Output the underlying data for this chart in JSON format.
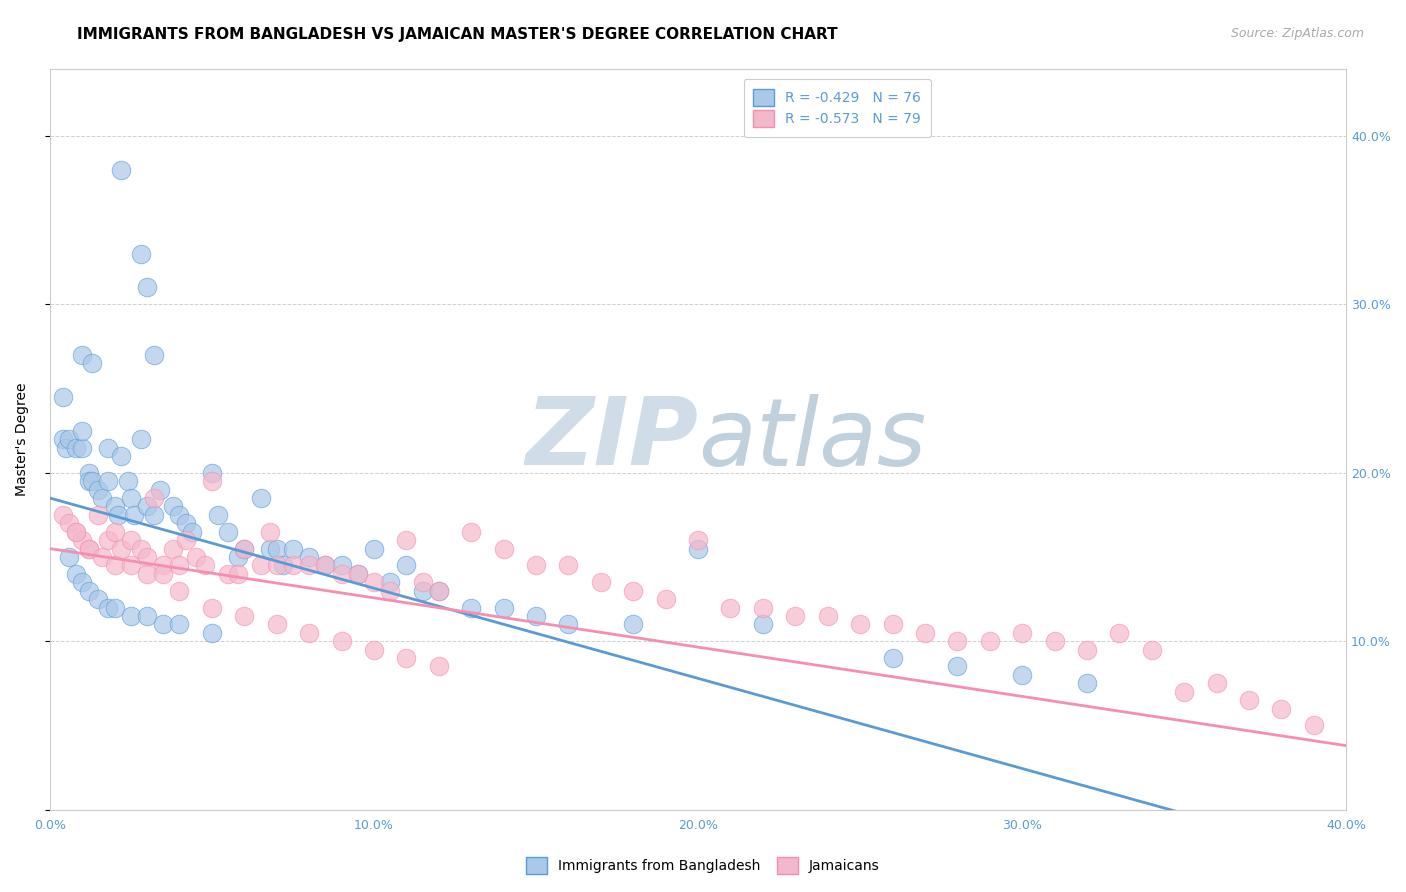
{
  "title": "IMMIGRANTS FROM BANGLADESH VS JAMAICAN MASTER'S DEGREE CORRELATION CHART",
  "source": "Source: ZipAtlas.com",
  "ylabel": "Master's Degree",
  "xlim": [
    0.0,
    0.4
  ],
  "ylim": [
    0.0,
    0.44
  ],
  "xtick_labels": [
    "0.0%",
    "",
    "10.0%",
    "",
    "20.0%",
    "",
    "30.0%",
    "",
    "40.0%"
  ],
  "xtick_vals": [
    0.0,
    0.05,
    0.1,
    0.15,
    0.2,
    0.25,
    0.3,
    0.35,
    0.4
  ],
  "ytick_labels_right": [
    "40.0%",
    "30.0%",
    "20.0%",
    "10.0%",
    ""
  ],
  "ytick_vals": [
    0.4,
    0.3,
    0.2,
    0.1,
    0.0
  ],
  "legend_label_blue": "R = -0.429   N = 76",
  "legend_label_pink": "R = -0.573   N = 79",
  "blue_color": "#5b9bd5",
  "pink_color": "#f48fb1",
  "blue_scatter_color": "#aac8e8",
  "pink_scatter_color": "#f4b8cb",
  "bg_color": "#ffffff",
  "grid_color": "#cccccc",
  "title_fontsize": 11,
  "source_fontsize": 9,
  "legend_fontsize": 10,
  "axis_label_fontsize": 10,
  "tick_fontsize": 9,
  "blue_x": [
    0.022,
    0.028,
    0.03,
    0.032,
    0.01,
    0.013,
    0.004,
    0.004,
    0.005,
    0.006,
    0.008,
    0.01,
    0.01,
    0.012,
    0.012,
    0.013,
    0.015,
    0.016,
    0.018,
    0.018,
    0.02,
    0.021,
    0.022,
    0.024,
    0.025,
    0.026,
    0.028,
    0.03,
    0.032,
    0.034,
    0.038,
    0.04,
    0.042,
    0.044,
    0.05,
    0.052,
    0.055,
    0.058,
    0.06,
    0.065,
    0.068,
    0.07,
    0.072,
    0.075,
    0.08,
    0.085,
    0.09,
    0.095,
    0.1,
    0.105,
    0.11,
    0.115,
    0.12,
    0.13,
    0.14,
    0.15,
    0.16,
    0.18,
    0.2,
    0.22,
    0.26,
    0.28,
    0.3,
    0.32,
    0.006,
    0.008,
    0.01,
    0.012,
    0.015,
    0.018,
    0.02,
    0.025,
    0.03,
    0.035,
    0.04,
    0.05
  ],
  "blue_y": [
    0.38,
    0.33,
    0.31,
    0.27,
    0.27,
    0.265,
    0.245,
    0.22,
    0.215,
    0.22,
    0.215,
    0.215,
    0.225,
    0.2,
    0.195,
    0.195,
    0.19,
    0.185,
    0.195,
    0.215,
    0.18,
    0.175,
    0.21,
    0.195,
    0.185,
    0.175,
    0.22,
    0.18,
    0.175,
    0.19,
    0.18,
    0.175,
    0.17,
    0.165,
    0.2,
    0.175,
    0.165,
    0.15,
    0.155,
    0.185,
    0.155,
    0.155,
    0.145,
    0.155,
    0.15,
    0.145,
    0.145,
    0.14,
    0.155,
    0.135,
    0.145,
    0.13,
    0.13,
    0.12,
    0.12,
    0.115,
    0.11,
    0.11,
    0.155,
    0.11,
    0.09,
    0.085,
    0.08,
    0.075,
    0.15,
    0.14,
    0.135,
    0.13,
    0.125,
    0.12,
    0.12,
    0.115,
    0.115,
    0.11,
    0.11,
    0.105
  ],
  "pink_x": [
    0.004,
    0.006,
    0.008,
    0.01,
    0.012,
    0.015,
    0.018,
    0.02,
    0.022,
    0.025,
    0.028,
    0.03,
    0.032,
    0.035,
    0.038,
    0.04,
    0.042,
    0.045,
    0.048,
    0.05,
    0.055,
    0.058,
    0.06,
    0.065,
    0.068,
    0.07,
    0.075,
    0.08,
    0.085,
    0.09,
    0.095,
    0.1,
    0.105,
    0.11,
    0.115,
    0.12,
    0.13,
    0.14,
    0.15,
    0.16,
    0.17,
    0.18,
    0.19,
    0.2,
    0.21,
    0.22,
    0.23,
    0.24,
    0.25,
    0.26,
    0.27,
    0.28,
    0.29,
    0.3,
    0.31,
    0.32,
    0.33,
    0.34,
    0.35,
    0.36,
    0.37,
    0.38,
    0.39,
    0.008,
    0.012,
    0.016,
    0.02,
    0.025,
    0.03,
    0.035,
    0.04,
    0.05,
    0.06,
    0.07,
    0.08,
    0.09,
    0.1,
    0.11,
    0.12
  ],
  "pink_y": [
    0.175,
    0.17,
    0.165,
    0.16,
    0.155,
    0.175,
    0.16,
    0.165,
    0.155,
    0.16,
    0.155,
    0.15,
    0.185,
    0.145,
    0.155,
    0.145,
    0.16,
    0.15,
    0.145,
    0.195,
    0.14,
    0.14,
    0.155,
    0.145,
    0.165,
    0.145,
    0.145,
    0.145,
    0.145,
    0.14,
    0.14,
    0.135,
    0.13,
    0.16,
    0.135,
    0.13,
    0.165,
    0.155,
    0.145,
    0.145,
    0.135,
    0.13,
    0.125,
    0.16,
    0.12,
    0.12,
    0.115,
    0.115,
    0.11,
    0.11,
    0.105,
    0.1,
    0.1,
    0.105,
    0.1,
    0.095,
    0.105,
    0.095,
    0.07,
    0.075,
    0.065,
    0.06,
    0.05,
    0.165,
    0.155,
    0.15,
    0.145,
    0.145,
    0.14,
    0.14,
    0.13,
    0.12,
    0.115,
    0.11,
    0.105,
    0.1,
    0.095,
    0.09,
    0.085
  ],
  "blue_line_x0": 0.0,
  "blue_line_x1": 0.355,
  "blue_line_y0": 0.185,
  "blue_line_y1": -0.005,
  "pink_line_x0": 0.0,
  "pink_line_x1": 0.4,
  "pink_line_y0": 0.155,
  "pink_line_y1": 0.038
}
